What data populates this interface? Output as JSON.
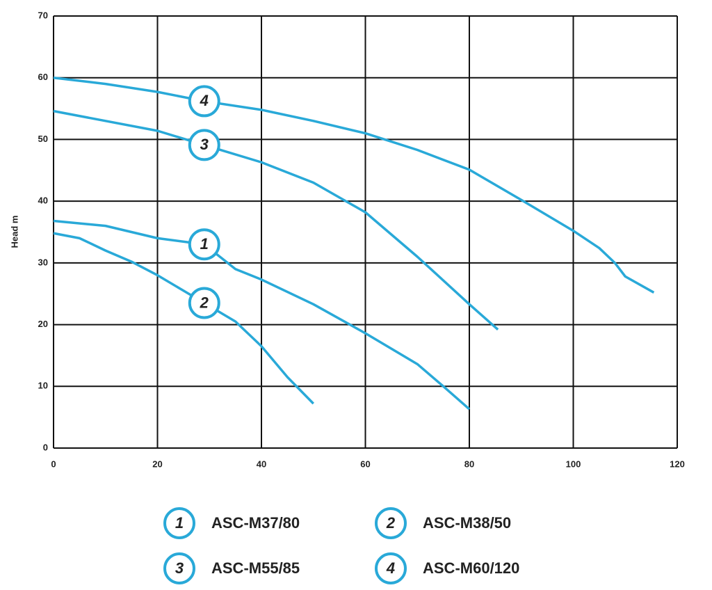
{
  "chart_data": {
    "type": "line",
    "ylabel": "Head m",
    "xlim": [
      0,
      120
    ],
    "xticks": [
      0,
      20,
      40,
      60,
      80,
      100,
      120
    ],
    "ylim": [
      0,
      70
    ],
    "yticks": [
      0,
      10,
      20,
      30,
      40,
      50,
      60,
      70
    ],
    "grid": true,
    "series": [
      {
        "name": "ASC-M37/80",
        "number": "1",
        "color": "#29a9d8",
        "x": [
          0,
          10,
          20,
          29,
          35,
          40,
          50,
          60,
          70,
          75,
          80
        ],
        "values": [
          36.8,
          36,
          34,
          33,
          29,
          27.3,
          23.3,
          18.6,
          13.6,
          10,
          6.3
        ]
      },
      {
        "name": "ASC-M38/50",
        "number": "2",
        "color": "#29a9d8",
        "x": [
          0,
          5,
          10,
          15,
          20,
          25,
          29,
          35,
          40,
          45,
          50
        ],
        "values": [
          34.8,
          34,
          32,
          30.2,
          28,
          25.5,
          23.5,
          20.5,
          16.5,
          11.5,
          7.2
        ]
      },
      {
        "name": "ASC-M55/85",
        "number": "3",
        "color": "#29a9d8",
        "x": [
          0,
          10,
          20,
          29,
          40,
          50,
          60,
          70,
          80,
          85.5
        ],
        "values": [
          54.6,
          53,
          51.4,
          49.1,
          46.3,
          43,
          38.2,
          31,
          23.3,
          19.2
        ]
      },
      {
        "name": "ASC-M60/120",
        "number": "4",
        "color": "#29a9d8",
        "x": [
          0,
          10,
          20,
          29,
          40,
          50,
          60,
          70,
          80,
          90,
          100,
          105,
          108,
          110,
          115.5
        ],
        "values": [
          60,
          59,
          57.7,
          56.2,
          54.8,
          53,
          51,
          48.3,
          45.1,
          40.2,
          35.2,
          32.4,
          30,
          27.8,
          25.2
        ]
      }
    ]
  }
}
